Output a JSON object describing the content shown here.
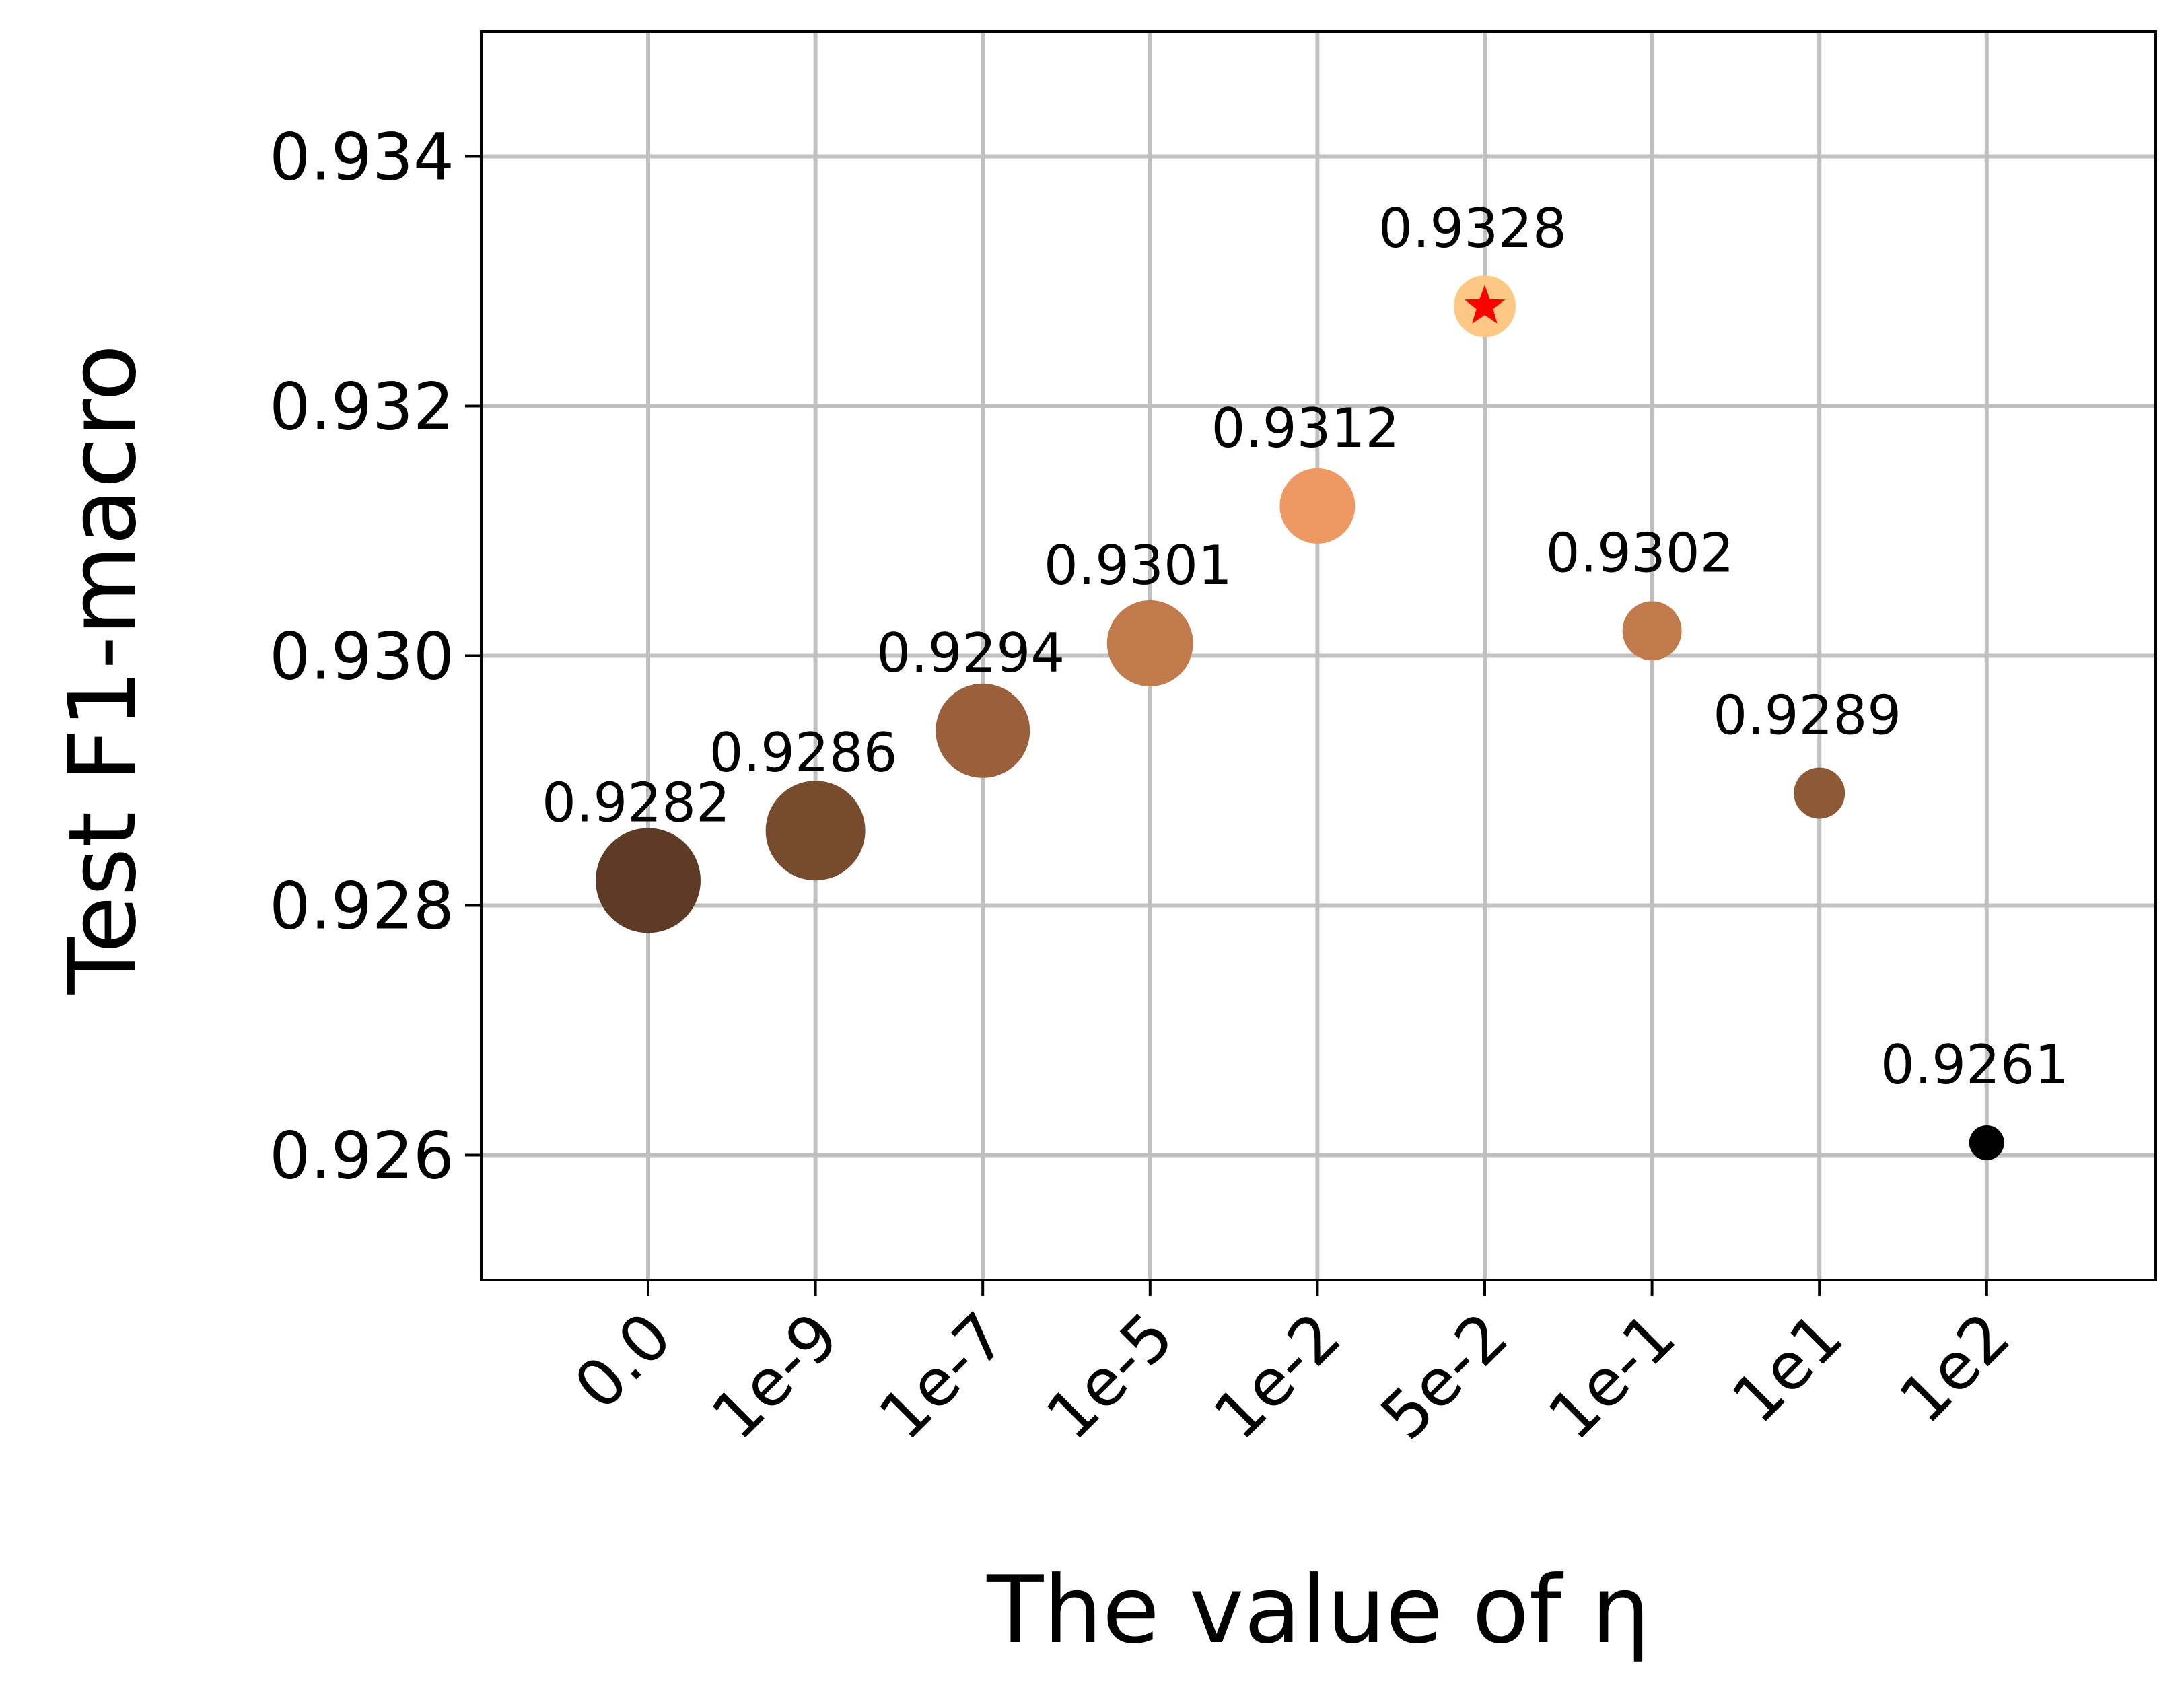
{
  "chart_data": {
    "type": "scatter",
    "xlabel": "The value of η",
    "ylabel": "Test F1-macro",
    "categories": [
      "0.0",
      "1e-9",
      "1e-7",
      "1e-5",
      "1e-2",
      "5e-2",
      "1e-1",
      "1e1",
      "1e2"
    ],
    "values": [
      0.9282,
      0.9286,
      0.9294,
      0.9301,
      0.9312,
      0.9328,
      0.9302,
      0.9289,
      0.9261
    ],
    "labels": [
      "0.9282",
      "0.9286",
      "0.9294",
      "0.9301",
      "0.9312",
      "0.9328",
      "0.9302",
      "0.9289",
      "0.9261"
    ],
    "colors": [
      "#5e3b24",
      "#774b2e",
      "#9a603b",
      "#c17a4b",
      "#ee9963",
      "#fdc784",
      "#c17a4b",
      "#8e5937",
      "#000000"
    ],
    "best_marker": {
      "index": 5,
      "shape": "star",
      "color": "#ff0000"
    },
    "ylim": [
      0.925,
      0.935
    ],
    "yticks": [
      "0.926",
      "0.928",
      "0.930",
      "0.932",
      "0.934"
    ],
    "grid": true,
    "legend": "none"
  }
}
